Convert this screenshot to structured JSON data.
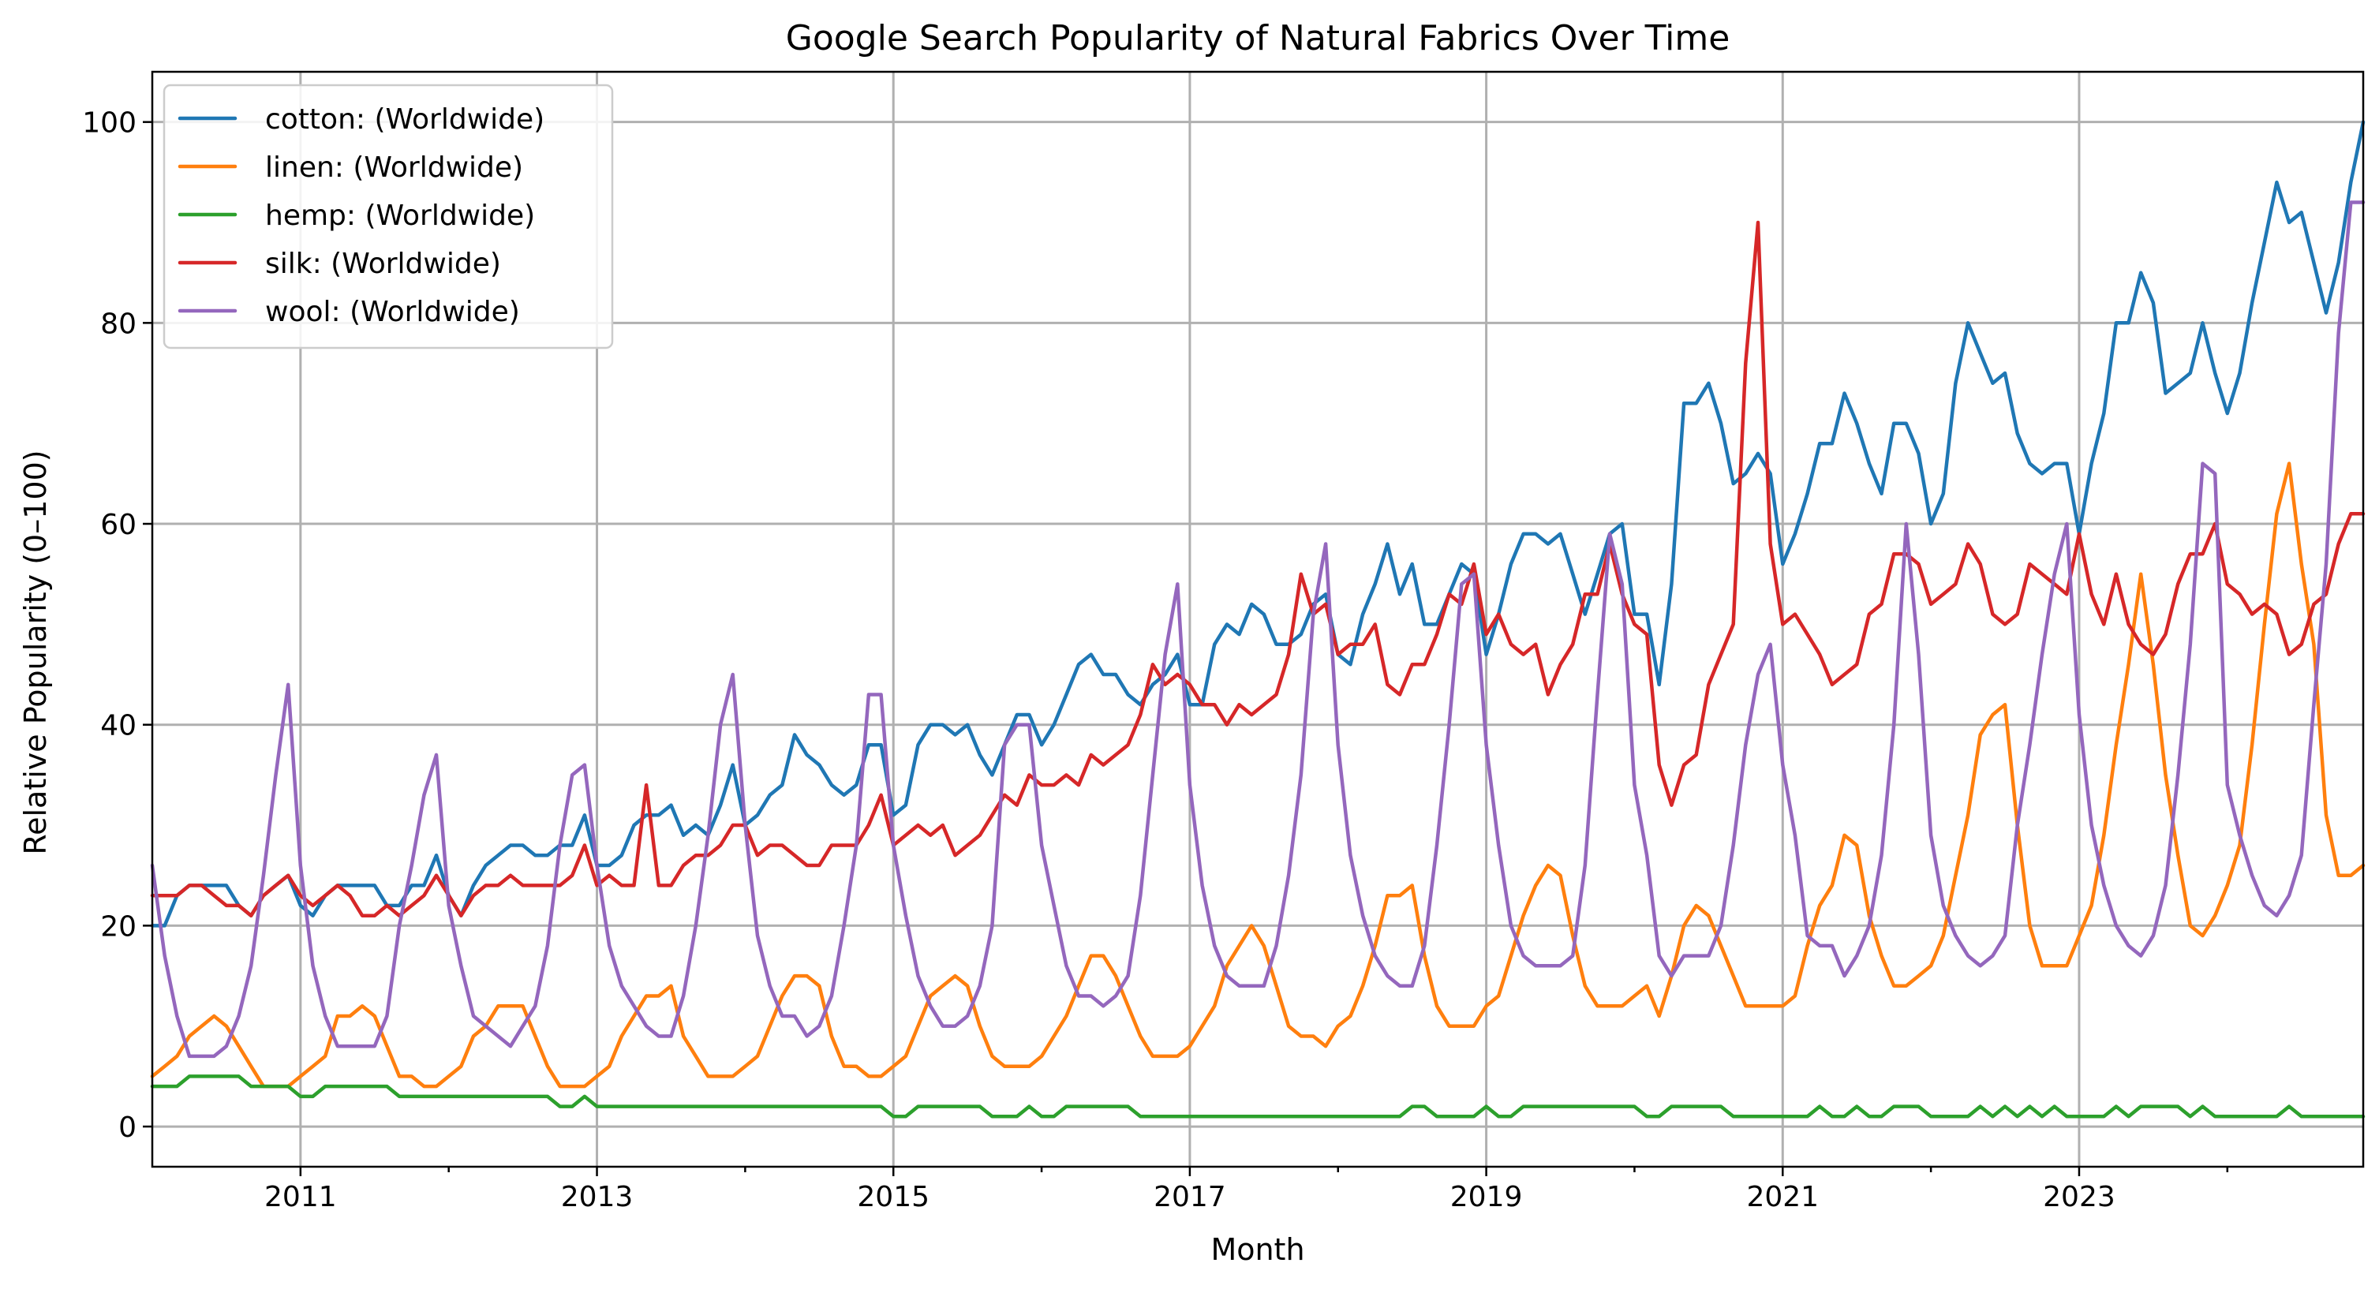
{
  "chart_data": {
    "type": "line",
    "title": "Google Search Popularity of Natural Fabrics Over Time",
    "xlabel": "Month",
    "ylabel": "Relative Popularity (0–100)",
    "x_start": "2010-01",
    "x_end": "2024-12",
    "xlim": [
      "2010-01",
      "2024-12"
    ],
    "ylim": [
      -4,
      105
    ],
    "x_ticks": [
      {
        "date": "2011-01",
        "label": "2011"
      },
      {
        "date": "2013-01",
        "label": "2013"
      },
      {
        "date": "2015-01",
        "label": "2015"
      },
      {
        "date": "2017-01",
        "label": "2017"
      },
      {
        "date": "2019-01",
        "label": "2019"
      },
      {
        "date": "2021-01",
        "label": "2021"
      },
      {
        "date": "2023-01",
        "label": "2023"
      }
    ],
    "x_minor_ticks": [
      "2012-01",
      "2014-01",
      "2016-01",
      "2018-01",
      "2020-01",
      "2022-01",
      "2024-01"
    ],
    "y_ticks": [
      0,
      20,
      40,
      60,
      80,
      100
    ],
    "grid": true,
    "legend_position": "top-left",
    "series": [
      {
        "name": "cotton: (Worldwide)",
        "color": "#1f77b4",
        "values": [
          20,
          20,
          23,
          24,
          24,
          24,
          24,
          22,
          21,
          23,
          24,
          25,
          22,
          21,
          23,
          24,
          24,
          24,
          24,
          22,
          22,
          24,
          24,
          27,
          23,
          21,
          24,
          26,
          27,
          28,
          28,
          27,
          27,
          28,
          28,
          31,
          26,
          26,
          27,
          30,
          31,
          31,
          32,
          29,
          30,
          29,
          32,
          36,
          30,
          31,
          33,
          34,
          39,
          37,
          36,
          34,
          33,
          34,
          38,
          38,
          31,
          32,
          38,
          40,
          40,
          39,
          40,
          37,
          35,
          38,
          41,
          41,
          38,
          40,
          43,
          46,
          47,
          45,
          45,
          43,
          42,
          44,
          45,
          47,
          42,
          42,
          48,
          50,
          49,
          52,
          51,
          48,
          48,
          49,
          52,
          53,
          47,
          46,
          51,
          54,
          58,
          53,
          56,
          50,
          50,
          53,
          56,
          55,
          47,
          51,
          56,
          59,
          59,
          58,
          59,
          55,
          51,
          55,
          59,
          60,
          51,
          51,
          44,
          54,
          72,
          72,
          74,
          70,
          64,
          65,
          67,
          65,
          56,
          59,
          63,
          68,
          68,
          73,
          70,
          66,
          63,
          70,
          70,
          67,
          60,
          63,
          74,
          80,
          77,
          74,
          75,
          69,
          66,
          65,
          66,
          66,
          59,
          66,
          71,
          80,
          80,
          85,
          82,
          73,
          74,
          75,
          80,
          75,
          71,
          75,
          82,
          88,
          94,
          90,
          91,
          86,
          81,
          86,
          94,
          100
        ]
      },
      {
        "name": "linen: (Worldwide)",
        "color": "#ff7f0e",
        "values": [
          5,
          6,
          7,
          9,
          10,
          11,
          10,
          8,
          6,
          4,
          4,
          4,
          5,
          6,
          7,
          11,
          11,
          12,
          11,
          8,
          5,
          5,
          4,
          4,
          5,
          6,
          9,
          10,
          12,
          12,
          12,
          9,
          6,
          4,
          4,
          4,
          5,
          6,
          9,
          11,
          13,
          13,
          14,
          9,
          7,
          5,
          5,
          5,
          6,
          7,
          10,
          13,
          15,
          15,
          14,
          9,
          6,
          6,
          5,
          5,
          6,
          7,
          10,
          13,
          14,
          15,
          14,
          10,
          7,
          6,
          6,
          6,
          7,
          9,
          11,
          14,
          17,
          17,
          15,
          12,
          9,
          7,
          7,
          7,
          8,
          10,
          12,
          16,
          18,
          20,
          18,
          14,
          10,
          9,
          9,
          8,
          10,
          11,
          14,
          18,
          23,
          23,
          24,
          17,
          12,
          10,
          10,
          10,
          12,
          13,
          17,
          21,
          24,
          26,
          25,
          19,
          14,
          12,
          12,
          12,
          13,
          14,
          11,
          15,
          20,
          22,
          21,
          18,
          15,
          12,
          12,
          12,
          12,
          13,
          18,
          22,
          24,
          29,
          28,
          21,
          17,
          14,
          14,
          15,
          16,
          19,
          25,
          31,
          39,
          41,
          42,
          30,
          20,
          16,
          16,
          16,
          19,
          22,
          29,
          38,
          46,
          55,
          46,
          35,
          27,
          20,
          19,
          21,
          24,
          28,
          38,
          50,
          61,
          66,
          56,
          48,
          31,
          25,
          25,
          26
        ]
      },
      {
        "name": "hemp: (Worldwide)",
        "color": "#2ca02c",
        "values": [
          4,
          4,
          4,
          5,
          5,
          5,
          5,
          5,
          4,
          4,
          4,
          4,
          3,
          3,
          4,
          4,
          4,
          4,
          4,
          4,
          3,
          3,
          3,
          3,
          3,
          3,
          3,
          3,
          3,
          3,
          3,
          3,
          3,
          2,
          2,
          3,
          2,
          2,
          2,
          2,
          2,
          2,
          2,
          2,
          2,
          2,
          2,
          2,
          2,
          2,
          2,
          2,
          2,
          2,
          2,
          2,
          2,
          2,
          2,
          2,
          1,
          1,
          2,
          2,
          2,
          2,
          2,
          2,
          1,
          1,
          1,
          2,
          1,
          1,
          2,
          2,
          2,
          2,
          2,
          2,
          1,
          1,
          1,
          1,
          1,
          1,
          1,
          1,
          1,
          1,
          1,
          1,
          1,
          1,
          1,
          1,
          1,
          1,
          1,
          1,
          1,
          1,
          2,
          2,
          1,
          1,
          1,
          1,
          2,
          1,
          1,
          2,
          2,
          2,
          2,
          2,
          2,
          2,
          2,
          2,
          2,
          1,
          1,
          2,
          2,
          2,
          2,
          2,
          1,
          1,
          1,
          1,
          1,
          1,
          1,
          2,
          1,
          1,
          2,
          1,
          1,
          2,
          2,
          2,
          1,
          1,
          1,
          1,
          2,
          1,
          2,
          1,
          2,
          1,
          2,
          1,
          1,
          1,
          1,
          2,
          1,
          2,
          2,
          2,
          2,
          1,
          2,
          1,
          1,
          1,
          1,
          1,
          1,
          2,
          1,
          1,
          1,
          1,
          1,
          1
        ]
      },
      {
        "name": "silk: (Worldwide)",
        "color": "#d62728",
        "values": [
          23,
          23,
          23,
          24,
          24,
          23,
          22,
          22,
          21,
          23,
          24,
          25,
          23,
          22,
          23,
          24,
          23,
          21,
          21,
          22,
          21,
          22,
          23,
          25,
          23,
          21,
          23,
          24,
          24,
          25,
          24,
          24,
          24,
          24,
          25,
          28,
          24,
          25,
          24,
          24,
          34,
          24,
          24,
          26,
          27,
          27,
          28,
          30,
          30,
          27,
          28,
          28,
          27,
          26,
          26,
          28,
          28,
          28,
          30,
          33,
          28,
          29,
          30,
          29,
          30,
          27,
          28,
          29,
          31,
          33,
          32,
          35,
          34,
          34,
          35,
          34,
          37,
          36,
          37,
          38,
          41,
          46,
          44,
          45,
          44,
          42,
          42,
          40,
          42,
          41,
          42,
          43,
          47,
          55,
          51,
          52,
          47,
          48,
          48,
          50,
          44,
          43,
          46,
          46,
          49,
          53,
          52,
          56,
          49,
          51,
          48,
          47,
          48,
          43,
          46,
          48,
          53,
          53,
          58,
          53,
          50,
          49,
          36,
          32,
          36,
          37,
          44,
          47,
          50,
          76,
          90,
          58,
          50,
          51,
          49,
          47,
          44,
          45,
          46,
          51,
          52,
          57,
          57,
          56,
          52,
          53,
          54,
          58,
          56,
          51,
          50,
          51,
          56,
          55,
          54,
          53,
          59,
          53,
          50,
          55,
          50,
          48,
          47,
          49,
          54,
          57,
          57,
          60,
          54,
          53,
          51,
          52,
          51,
          47,
          48,
          52,
          53,
          58,
          61,
          61
        ]
      },
      {
        "name": "wool: (Worldwide)",
        "color": "#9467bd",
        "values": [
          26,
          17,
          11,
          7,
          7,
          7,
          8,
          11,
          16,
          25,
          35,
          44,
          26,
          16,
          11,
          8,
          8,
          8,
          8,
          11,
          20,
          26,
          33,
          37,
          22,
          16,
          11,
          10,
          9,
          8,
          10,
          12,
          18,
          28,
          35,
          36,
          26,
          18,
          14,
          12,
          10,
          9,
          9,
          13,
          20,
          29,
          40,
          45,
          30,
          19,
          14,
          11,
          11,
          9,
          10,
          13,
          20,
          28,
          43,
          43,
          28,
          21,
          15,
          12,
          10,
          10,
          11,
          14,
          20,
          38,
          40,
          40,
          28,
          22,
          16,
          13,
          13,
          12,
          13,
          15,
          23,
          35,
          47,
          54,
          34,
          24,
          18,
          15,
          14,
          14,
          14,
          18,
          25,
          35,
          51,
          58,
          38,
          27,
          21,
          17,
          15,
          14,
          14,
          18,
          28,
          40,
          54,
          55,
          38,
          28,
          20,
          17,
          16,
          16,
          16,
          17,
          26,
          43,
          59,
          54,
          34,
          27,
          17,
          15,
          17,
          17,
          17,
          20,
          28,
          38,
          45,
          48,
          36,
          29,
          19,
          18,
          18,
          15,
          17,
          20,
          27,
          40,
          60,
          47,
          29,
          22,
          19,
          17,
          16,
          17,
          19,
          30,
          38,
          47,
          55,
          60,
          41,
          30,
          24,
          20,
          18,
          17,
          19,
          24,
          35,
          48,
          66,
          65,
          34,
          29,
          25,
          22,
          21,
          23,
          27,
          42,
          56,
          79,
          92,
          92
        ]
      }
    ]
  }
}
